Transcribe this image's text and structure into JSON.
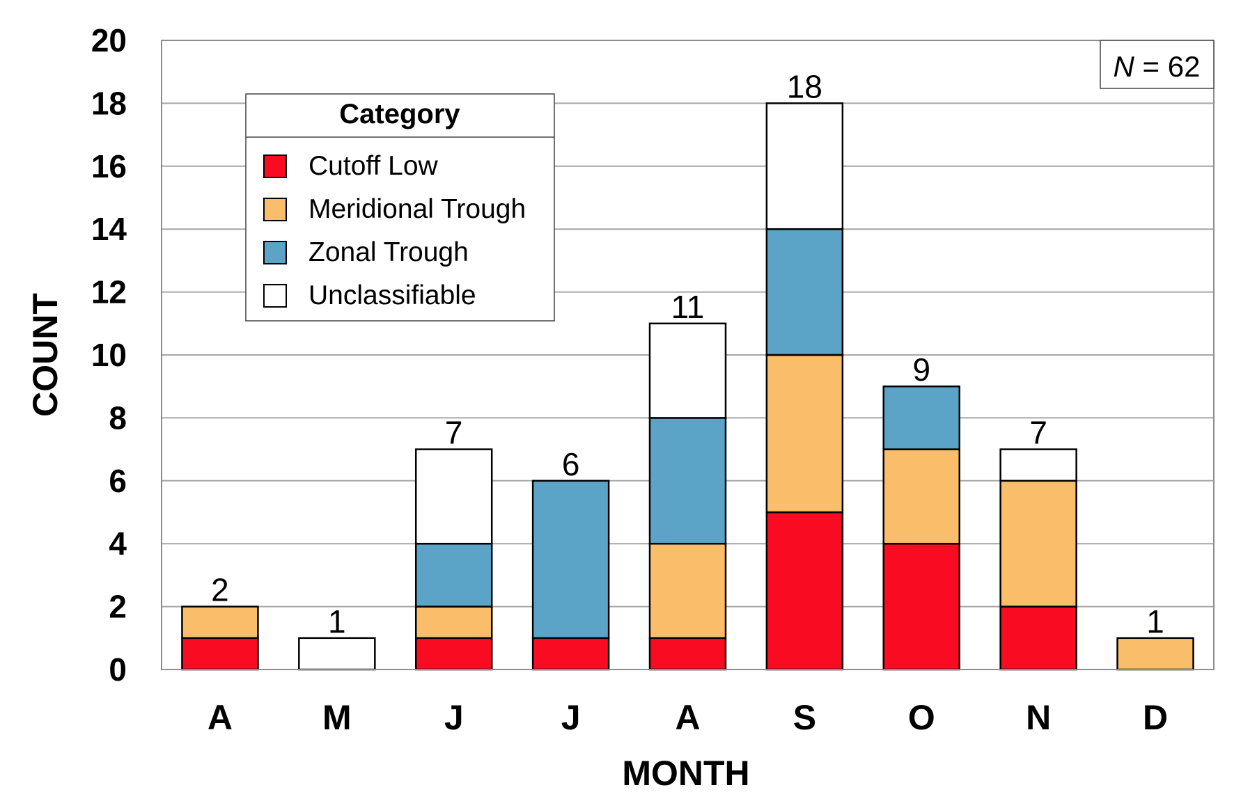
{
  "chart_data": {
    "type": "bar",
    "stacked": true,
    "categories": [
      "A",
      "M",
      "J",
      "J",
      "A",
      "S",
      "O",
      "N",
      "D"
    ],
    "series": [
      {
        "name": "Cutoff Low",
        "color": "#f90c21",
        "values": [
          1,
          0,
          1,
          1,
          1,
          5,
          4,
          2,
          0
        ]
      },
      {
        "name": "Meridional Trough",
        "color": "#fabd69",
        "values": [
          1,
          0,
          1,
          0,
          3,
          5,
          3,
          4,
          1
        ]
      },
      {
        "name": "Zonal Trough",
        "color": "#5ba4c7",
        "values": [
          0,
          0,
          2,
          5,
          4,
          4,
          2,
          0,
          0
        ]
      },
      {
        "name": "Unclassifiable",
        "color": "#ffffff",
        "values": [
          0,
          1,
          3,
          0,
          3,
          4,
          0,
          1,
          0
        ]
      }
    ],
    "totals": [
      2,
      1,
      7,
      6,
      11,
      18,
      9,
      7,
      1
    ],
    "xlabel": "MONTH",
    "ylabel": "COUNT",
    "ylim": [
      0,
      20
    ],
    "yticks": [
      0,
      2,
      4,
      6,
      8,
      10,
      12,
      14,
      16,
      18,
      20
    ],
    "grid": true,
    "legend": {
      "title": "Category",
      "placement": "top-left"
    },
    "annotation": {
      "n_symbol": "N",
      "n_rest": " = 62",
      "placement": "top-right"
    }
  }
}
